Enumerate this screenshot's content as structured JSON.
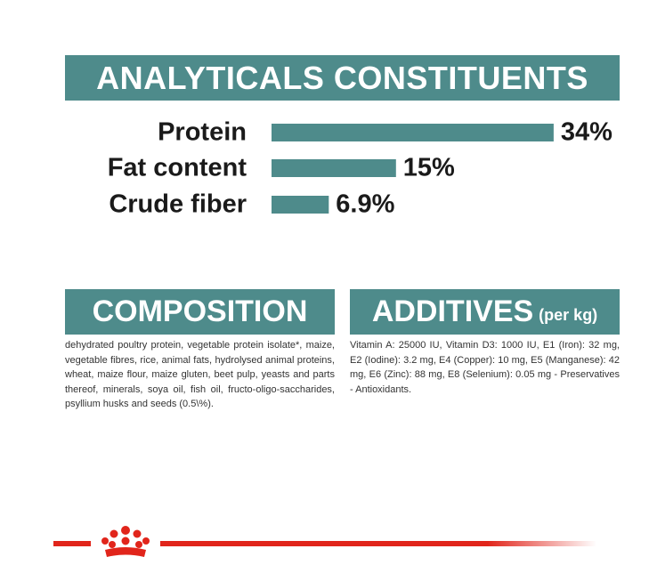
{
  "chart_data": {
    "type": "bar",
    "title": "ANALYTICALS CONSTITUENTS",
    "categories": [
      "Protein",
      "Fat content",
      "Crude fiber"
    ],
    "values": [
      34,
      15,
      6.9
    ],
    "value_labels": [
      "34%",
      "15%",
      "6.9%"
    ],
    "color": "#4e8b8b"
  },
  "composition": {
    "title": "COMPOSITION",
    "text": "dehydrated poultry protein, vegetable protein isolate*, maize, vegetable fibres, rice, animal fats, hydrolysed animal proteins, wheat, maize flour, maize gluten, beet pulp, yeasts and parts thereof, minerals, soya oil, fish oil, fructo-oligo-saccharides, psyllium husks and seeds (0.5\\%)."
  },
  "additives": {
    "title": "ADDITIVES",
    "subtitle": "(per kg)",
    "text": "Vitamin A: 25000 IU, Vitamin D3: 1000 IU, E1 (Iron): 32 mg, E2 (Iodine): 3.2 mg, E4 (Copper): 10 mg, E5 (Manganese): 42 mg, E6 (Zinc): 88 mg, E8 (Selenium): 0.05 mg - Preservatives - Antioxidants."
  }
}
